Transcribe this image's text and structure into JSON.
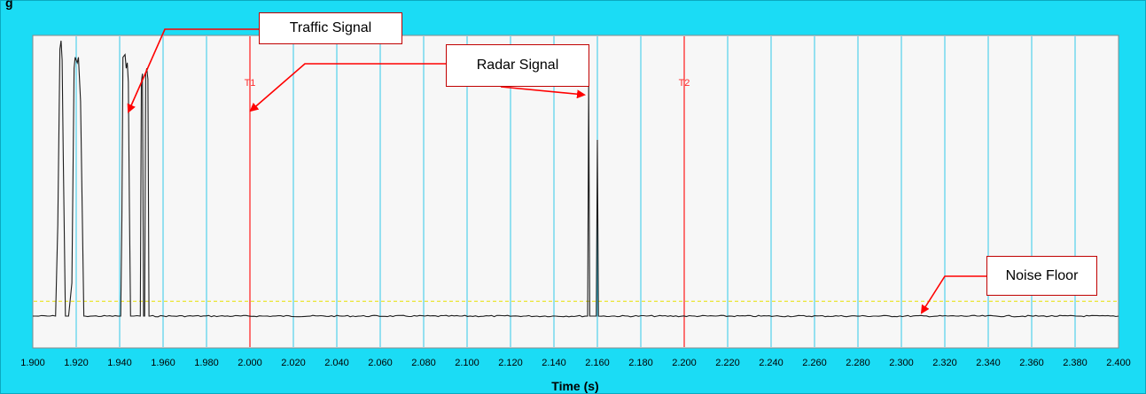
{
  "window": {
    "title_fragment": "g",
    "frame_color": "#1bdcf5"
  },
  "chart_data": {
    "type": "line",
    "title": "",
    "xlabel": "Time (s)",
    "ylabel": "",
    "xlim": [
      1.9,
      2.4
    ],
    "ylim": [
      0,
      1
    ],
    "grid": true,
    "colors": {
      "plot_background": "#f7f7f7",
      "grid": "#31c8ea",
      "signal": "#1e1e1e",
      "cursor": "#ff2a2a",
      "noise_threshold": "#e8e000",
      "callout_border": "#c00000",
      "arrow": "#ff0000"
    },
    "x_ticks": [
      "1.900",
      "1.920",
      "1.940",
      "1.960",
      "1.980",
      "2.000",
      "2.020",
      "2.040",
      "2.060",
      "2.080",
      "2.100",
      "2.120",
      "2.140",
      "2.160",
      "2.180",
      "2.200",
      "2.220",
      "2.240",
      "2.260",
      "2.280",
      "2.300",
      "2.320",
      "2.340",
      "2.360",
      "2.380",
      "2.400"
    ],
    "cursors": [
      {
        "label": "T1",
        "x": 2.0
      },
      {
        "label": "T2",
        "x": 2.2
      }
    ],
    "noise_threshold": 0.054,
    "baseline": 0.0,
    "series": [
      {
        "points": [
          [
            1.9,
            0.0
          ],
          [
            1.9105,
            0.0
          ],
          [
            1.9115,
            0.33
          ],
          [
            1.9125,
            0.97
          ],
          [
            1.913,
            1.0
          ],
          [
            1.9135,
            0.93
          ],
          [
            1.914,
            0.6
          ],
          [
            1.915,
            0.0
          ],
          [
            1.9165,
            0.0
          ],
          [
            1.918,
            0.12
          ],
          [
            1.919,
            0.9
          ],
          [
            1.9195,
            0.94
          ],
          [
            1.9205,
            0.92
          ],
          [
            1.921,
            0.94
          ],
          [
            1.922,
            0.78
          ],
          [
            1.9235,
            0.0
          ],
          [
            1.924,
            0.0
          ],
          [
            1.9405,
            0.0
          ],
          [
            1.941,
            0.35
          ],
          [
            1.9415,
            0.94
          ],
          [
            1.9425,
            0.95
          ],
          [
            1.943,
            0.9
          ],
          [
            1.9435,
            0.92
          ],
          [
            1.944,
            0.85
          ],
          [
            1.9445,
            0.4
          ],
          [
            1.945,
            0.0
          ],
          [
            1.9495,
            0.0
          ],
          [
            1.95,
            0.85
          ],
          [
            1.9505,
            0.88
          ],
          [
            1.951,
            0.0
          ],
          [
            1.9515,
            0.0
          ],
          [
            1.952,
            0.88
          ],
          [
            1.9525,
            0.9
          ],
          [
            1.953,
            0.86
          ],
          [
            1.9535,
            0.0
          ],
          [
            1.954,
            0.0
          ],
          [
            2.1555,
            0.0
          ],
          [
            2.156,
            0.84
          ],
          [
            2.1565,
            0.0
          ],
          [
            2.1595,
            0.0
          ],
          [
            2.16,
            0.64
          ],
          [
            2.1605,
            0.0
          ],
          [
            2.4,
            0.0
          ]
        ]
      }
    ]
  },
  "annotations": {
    "traffic_signal": "Traffic Signal",
    "radar_signal": "Radar Signal",
    "noise_floor": "Noise Floor"
  }
}
